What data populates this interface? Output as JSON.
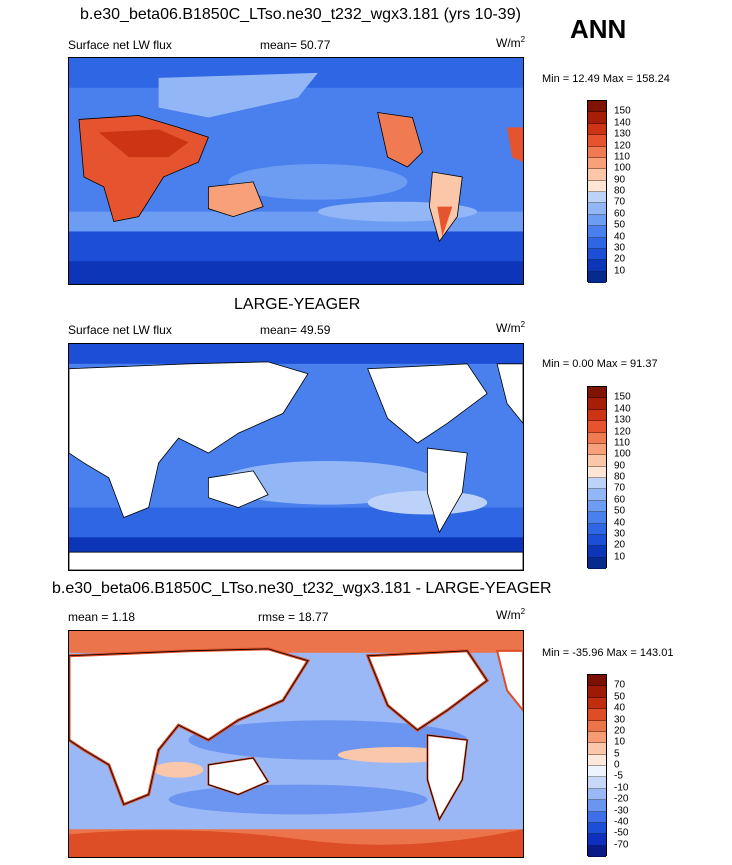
{
  "season": "ANN",
  "panels": [
    {
      "title": "b.e30_beta06.B1850C_LTso.ne30_t232_wgx3.181 (yrs 10-39)",
      "left_label": "Surface net LW flux",
      "mid_label": "mean=  50.77",
      "unit": "W/m",
      "unit_sup": "2",
      "minmax": "Min =  12.49 Max = 158.24",
      "colorbar_levels": [
        "150",
        "140",
        "130",
        "120",
        "110",
        "100",
        "90",
        "80",
        "70",
        "60",
        "50",
        "40",
        "30",
        "20",
        "10"
      ]
    },
    {
      "title": "LARGE-YEAGER",
      "left_label": "Surface net LW flux",
      "mid_label": "mean=  49.59",
      "unit": "W/m",
      "unit_sup": "2",
      "minmax": "Min =   0.00 Max =  91.37",
      "colorbar_levels": [
        "150",
        "140",
        "130",
        "120",
        "110",
        "100",
        "90",
        "80",
        "70",
        "60",
        "50",
        "40",
        "30",
        "20",
        "10"
      ]
    },
    {
      "title": "b.e30_beta06.B1850C_LTso.ne30_t232_wgx3.181 - LARGE-YEAGER",
      "left_label": "mean =   1.18",
      "mid_label": "rmse =  18.77",
      "unit": "W/m",
      "unit_sup": "2",
      "minmax": "Min = -35.96 Max = 143.01",
      "colorbar_levels": [
        "70",
        "50",
        "40",
        "30",
        "20",
        "10",
        "5",
        "0",
        "-5",
        "-10",
        "-20",
        "-30",
        "-40",
        "-50",
        "-70"
      ]
    }
  ],
  "colors": {
    "seq": [
      "#062b8c",
      "#0c35b8",
      "#1d4fd6",
      "#2f66e3",
      "#4a80ee",
      "#6d9cf3",
      "#93b6f6",
      "#bcd2f8",
      "#e1ebfb",
      "#fde6d6",
      "#fbc7a8",
      "#f7a07a",
      "#f07a52",
      "#e5542e",
      "#cc3413",
      "#a61e05",
      "#7f1402"
    ],
    "div": [
      "#0a1a87",
      "#0f2fbf",
      "#1d4fd6",
      "#3d6fe8",
      "#6b95f1",
      "#9ab8f6",
      "#c7d8f9",
      "#eef3fd",
      "#fde8dc",
      "#fbc7ab",
      "#f59c74",
      "#ec744a",
      "#dd4d26",
      "#c12e0e",
      "#9e1a04",
      "#7a1002"
    ]
  }
}
